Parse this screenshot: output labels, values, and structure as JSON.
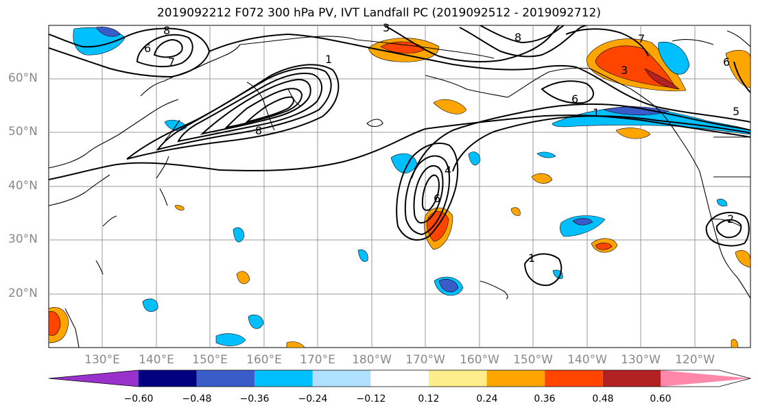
{
  "title": "2019092212 F072 300 hPa PV, IVT Landfall PC (2019092512 - 2019092712)",
  "lat_labels": [
    "60°N",
    "50°N",
    "40°N",
    "30°N",
    "20°N"
  ],
  "lon_labels": [
    "130°E",
    "140°E",
    "150°E",
    "160°E",
    "170°E",
    "180°W",
    "170°W",
    "160°W",
    "150°W",
    "140°W",
    "130°W",
    "120°W"
  ],
  "contour_labels": [
    "1",
    "2",
    "3",
    "4",
    "5",
    "6",
    "7",
    "8"
  ],
  "colorbar": {
    "colors": [
      "#9932cc",
      "#000080",
      "#3a5cc8",
      "#00bfff",
      "#b0e0ff",
      "#ffffff",
      "#ffec8b",
      "#ffa500",
      "#ff4500",
      "#b22222",
      "#ff88aa"
    ],
    "ticks": [
      "−0.60",
      "−0.48",
      "−0.36",
      "−0.24",
      "−0.12",
      "0.12",
      "0.24",
      "0.36",
      "0.48",
      "0.60"
    ]
  }
}
